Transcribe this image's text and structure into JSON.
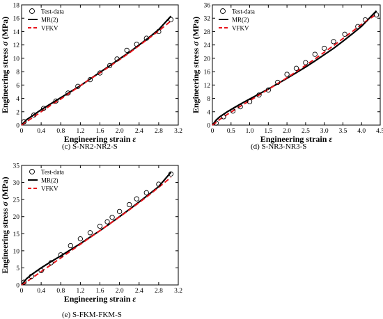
{
  "figure": {
    "captions": [
      "(c) S-NR2-NR2-S",
      "(d) S-NR3-NR3-S",
      "(e) S-FKM-FKM-S"
    ]
  },
  "chart_data": [
    {
      "type": "line",
      "panel": "(c) S-NR2-NR2-S",
      "xlabel": "Engineering strain ε",
      "ylabel": "Engineering stress σ (MPa)",
      "xlim": [
        0,
        3.2
      ],
      "ylim": [
        0,
        18
      ],
      "xticks": [
        0,
        0.4,
        0.8,
        1.2,
        1.6,
        2.0,
        2.4,
        2.8,
        3.2
      ],
      "xtick_labels": [
        "0",
        "0.4",
        "0.8",
        "1.2",
        "1.6",
        "2.0",
        "2.4",
        "2.8",
        "3.2"
      ],
      "yticks": [
        0,
        2,
        4,
        6,
        8,
        10,
        12,
        14,
        16,
        18
      ],
      "ytick_labels": [
        "0",
        "2",
        "4",
        "6",
        "8",
        "10",
        "12",
        "14",
        "16",
        "18"
      ],
      "grid": false,
      "legend": "top-left",
      "series": [
        {
          "name": "Test-data",
          "kind": "markers",
          "color": "#000000",
          "x": [
            0.05,
            0.25,
            0.45,
            0.7,
            0.95,
            1.15,
            1.4,
            1.6,
            1.8,
            1.95,
            2.15,
            2.35,
            2.55,
            2.8,
            3.05
          ],
          "y": [
            0.5,
            1.5,
            2.5,
            3.6,
            4.8,
            5.8,
            6.8,
            7.8,
            8.9,
            9.9,
            11.2,
            12.1,
            13.0,
            14.0,
            15.8
          ]
        },
        {
          "name": "MR(2)",
          "kind": "solid",
          "color": "#000000",
          "x": [
            0,
            0.1,
            0.2,
            0.4,
            0.6,
            0.8,
            1.0,
            1.2,
            1.4,
            1.6,
            1.8,
            2.0,
            2.2,
            2.4,
            2.6,
            2.8,
            3.05
          ],
          "y": [
            0,
            0.8,
            1.3,
            2.3,
            3.2,
            4.1,
            5.0,
            5.9,
            6.9,
            7.9,
            8.9,
            9.9,
            10.9,
            12.0,
            13.1,
            14.3,
            16.3
          ]
        },
        {
          "name": "VFKV",
          "kind": "dashed",
          "color": "#e8141b",
          "x": [
            0,
            0.1,
            0.2,
            0.4,
            0.6,
            0.8,
            1.0,
            1.2,
            1.4,
            1.6,
            1.8,
            2.0,
            2.2,
            2.4,
            2.6,
            2.8,
            3.05
          ],
          "y": [
            0,
            0.5,
            1.0,
            2.0,
            3.0,
            3.9,
            4.9,
            5.9,
            6.9,
            7.8,
            8.8,
            9.8,
            10.8,
            11.9,
            13.0,
            14.1,
            15.6
          ]
        }
      ]
    },
    {
      "type": "line",
      "panel": "(d) S-NR3-NR3-S",
      "xlabel": "Engineering strain ε",
      "ylabel": "Engineering stress σ (MPa)",
      "xlim": [
        0,
        4.5
      ],
      "ylim": [
        0,
        36
      ],
      "xticks": [
        0,
        0.5,
        1.0,
        1.5,
        2.0,
        2.5,
        3.0,
        3.5,
        4.0,
        4.5
      ],
      "xtick_labels": [
        "0",
        "0.5",
        "1.0",
        "1.5",
        "2.0",
        "2.5",
        "3.0",
        "3.5",
        "4.0",
        "4.5"
      ],
      "yticks": [
        0,
        4,
        8,
        12,
        16,
        20,
        24,
        28,
        32,
        36
      ],
      "ytick_labels": [
        "0",
        "4",
        "8",
        "12",
        "16",
        "20",
        "24",
        "28",
        "32",
        "36"
      ],
      "grid": false,
      "legend": "top-left",
      "series": [
        {
          "name": "Test-data",
          "kind": "markers",
          "color": "#000000",
          "x": [
            0.1,
            0.3,
            0.55,
            0.75,
            1.0,
            1.25,
            1.5,
            1.75,
            2.0,
            2.25,
            2.5,
            2.75,
            3.0,
            3.25,
            3.55,
            3.9,
            4.1,
            4.4
          ],
          "y": [
            0.6,
            2.5,
            4.2,
            5.5,
            7.0,
            9.0,
            10.5,
            12.8,
            15.2,
            17.0,
            18.7,
            21.2,
            23.0,
            25.0,
            27.2,
            29.5,
            31.5,
            33.0
          ]
        },
        {
          "name": "MR(2)",
          "kind": "solid",
          "color": "#000000",
          "x": [
            0,
            0.1,
            0.2,
            0.4,
            0.6,
            0.8,
            1.0,
            1.25,
            1.5,
            1.75,
            2.0,
            2.25,
            2.5,
            2.75,
            3.0,
            3.25,
            3.5,
            3.75,
            4.0,
            4.4
          ],
          "y": [
            0,
            1.5,
            2.5,
            4.0,
            5.3,
            6.6,
            7.8,
            9.3,
            10.8,
            12.4,
            14.0,
            15.7,
            17.4,
            19.2,
            21.1,
            23.0,
            25.1,
            27.3,
            29.6,
            34.2
          ]
        },
        {
          "name": "VFKV",
          "kind": "dashed",
          "color": "#e8141b",
          "x": [
            0,
            0.1,
            0.2,
            0.4,
            0.6,
            0.8,
            1.0,
            1.25,
            1.5,
            1.75,
            2.0,
            2.25,
            2.5,
            2.75,
            3.0,
            3.25,
            3.5,
            3.75,
            4.0,
            4.4
          ],
          "y": [
            0,
            0.8,
            1.7,
            3.2,
            4.6,
            6.0,
            7.3,
            9.0,
            10.7,
            12.4,
            14.2,
            16.0,
            17.9,
            19.8,
            21.8,
            23.8,
            25.9,
            28.0,
            30.2,
            33.2
          ]
        }
      ]
    },
    {
      "type": "line",
      "panel": "(e) S-FKM-FKM-S",
      "xlabel": "Engineering strain ε",
      "ylabel": "Engineering stress σ (MPa)",
      "xlim": [
        0,
        3.2
      ],
      "ylim": [
        0,
        35
      ],
      "xticks": [
        0,
        0.4,
        0.8,
        1.2,
        1.6,
        2.0,
        2.4,
        2.8,
        3.2
      ],
      "xtick_labels": [
        "0",
        "0.4",
        "0.8",
        "1.2",
        "1.6",
        "2.0",
        "2.4",
        "2.8",
        "3.2"
      ],
      "yticks": [
        0,
        5,
        10,
        15,
        20,
        25,
        30,
        35
      ],
      "ytick_labels": [
        "0",
        "5",
        "10",
        "15",
        "20",
        "25",
        "30",
        "35"
      ],
      "grid": false,
      "legend": "top-left",
      "series": [
        {
          "name": "Test-data",
          "kind": "markers",
          "color": "#000000",
          "x": [
            0.05,
            0.2,
            0.4,
            0.6,
            0.8,
            1.0,
            1.2,
            1.4,
            1.6,
            1.75,
            1.85,
            2.0,
            2.2,
            2.35,
            2.55,
            2.8,
            3.05
          ],
          "y": [
            0.8,
            2.5,
            4.2,
            6.5,
            8.8,
            11.5,
            13.5,
            15.3,
            17.2,
            18.5,
            19.8,
            21.5,
            23.5,
            25.2,
            27.0,
            29.5,
            32.5
          ]
        },
        {
          "name": "MR(2)",
          "kind": "solid",
          "color": "#000000",
          "x": [
            0,
            0.1,
            0.2,
            0.4,
            0.6,
            0.8,
            1.0,
            1.2,
            1.4,
            1.6,
            1.8,
            2.0,
            2.2,
            2.4,
            2.6,
            2.8,
            3.05
          ],
          "y": [
            0,
            1.8,
            3.0,
            5.0,
            6.8,
            8.5,
            10.3,
            12.1,
            14.0,
            15.9,
            17.9,
            20.0,
            22.1,
            24.3,
            26.5,
            28.8,
            33.0
          ]
        },
        {
          "name": "VFKV",
          "kind": "dashed",
          "color": "#e8141b",
          "x": [
            0,
            0.1,
            0.2,
            0.4,
            0.6,
            0.8,
            1.0,
            1.2,
            1.4,
            1.6,
            1.8,
            2.0,
            2.2,
            2.4,
            2.6,
            2.8,
            3.05
          ],
          "y": [
            0,
            0.9,
            1.9,
            3.9,
            5.9,
            7.9,
            9.9,
            11.9,
            13.9,
            15.9,
            17.9,
            19.9,
            22.0,
            24.1,
            26.3,
            28.6,
            31.5
          ]
        }
      ]
    }
  ]
}
